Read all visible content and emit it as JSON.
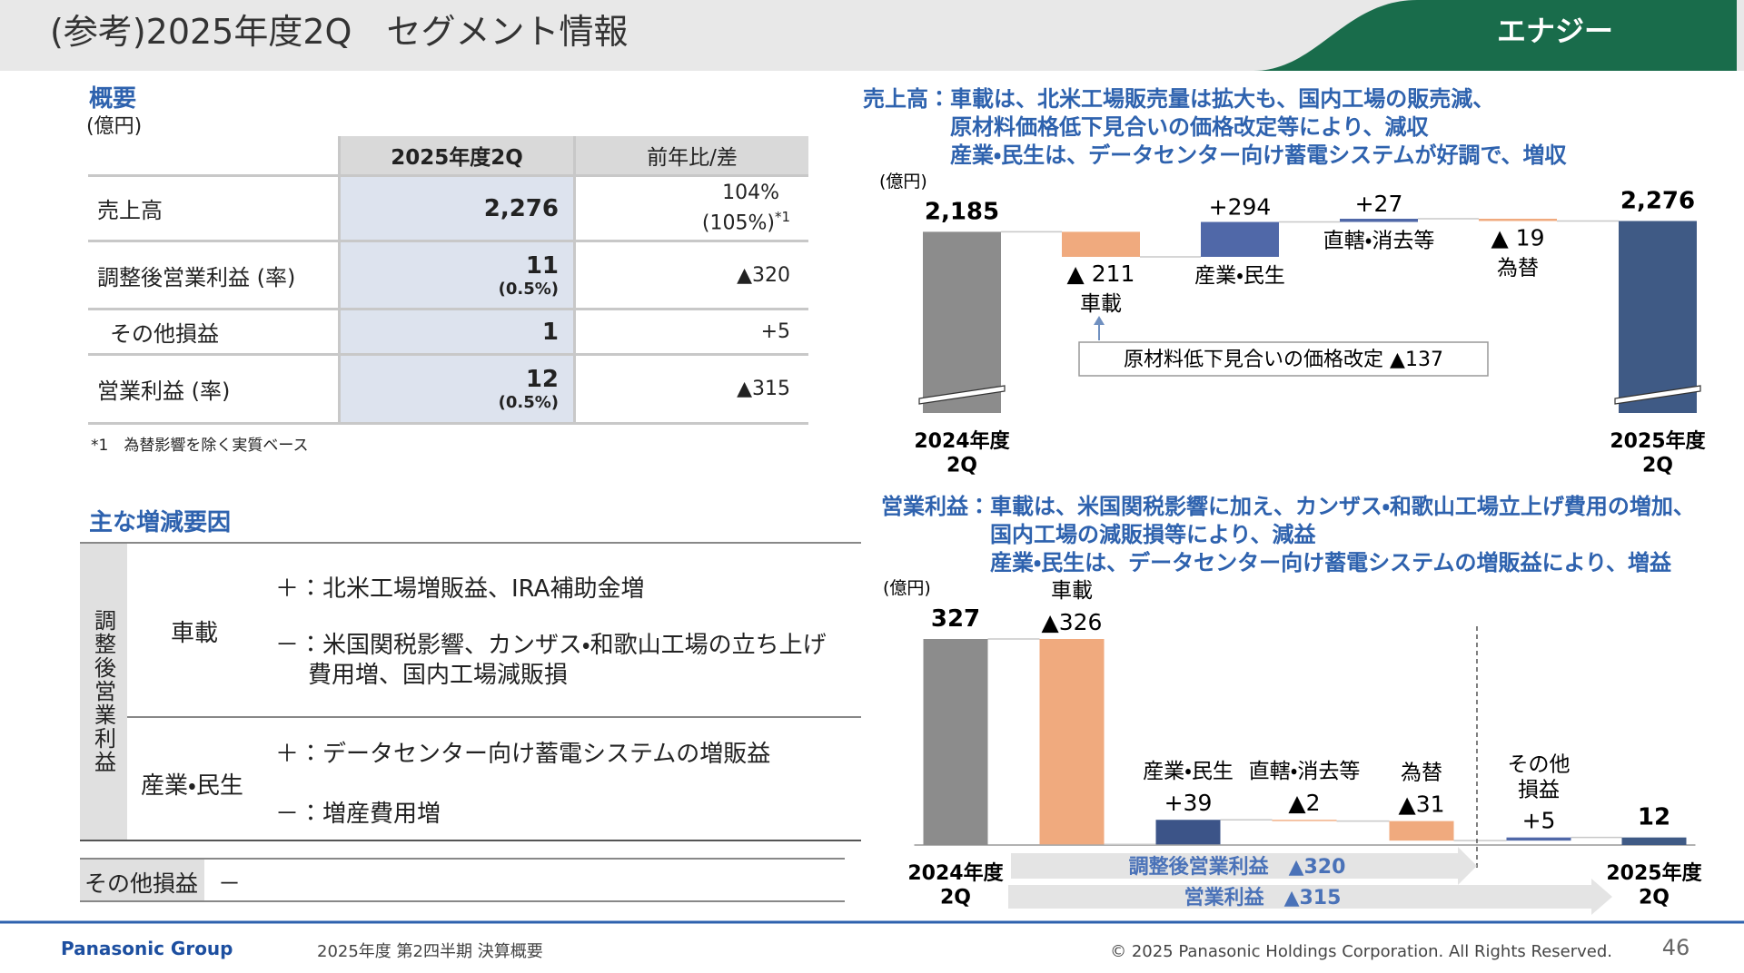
{
  "header": {
    "title": "(参考)2025年度2Q　セグメント情報",
    "segment": "エナジー"
  },
  "summary": {
    "title": "概要",
    "unit": "(億円)",
    "columns": [
      "2025年度2Q",
      "前年比/差"
    ],
    "rows": [
      {
        "label": "売上高",
        "value": "2,276",
        "change": "104%",
        "change_note": "(105%)",
        "change_mark": "*1"
      },
      {
        "label": "調整後営業利益 (率)",
        "value": "11",
        "value_note": "(0.5%)",
        "change": "▲320"
      },
      {
        "label": "その他損益",
        "value": "1",
        "change": "+5"
      },
      {
        "label": "営業利益 (率)",
        "value": "12",
        "value_note": "(0.5%)",
        "change": "▲315"
      }
    ],
    "footnote": "*1　為替影響を除く実質ベース"
  },
  "factors": {
    "title": "主な増減要因",
    "group": "調整後営業利益",
    "rows": [
      {
        "segment": "車載",
        "items": [
          "＋：北米工場増販益、IRA補助金増",
          "－：米国関税影響、カンザス・和歌山工場の立ち上げ\n費用増、国内工場減販損"
        ]
      },
      {
        "segment": "産業・民生",
        "items": [
          "＋：データセンター向け蓄電システムの増販益",
          "－：増産費用増"
        ]
      }
    ],
    "other": {
      "label": "その他損益",
      "value": "－"
    }
  },
  "chart_data": [
    {
      "type": "waterfall",
      "title": "売上高：",
      "notes": [
        "車載は、北米工場販売量は拡大も、国内工場の販売減、",
        "原材料価格低下見合いの価格改定等により、減収",
        "産業・民生は、データセンター向け蓄電システムが好調で、増収"
      ],
      "unit": "(億円)",
      "axis_break": true,
      "categories": [
        "2024年度\n2Q",
        "車載",
        "産業・民生",
        "直轄・消去等",
        "為替",
        "2025年度\n2Q"
      ],
      "measure": [
        "total",
        "relative",
        "relative",
        "relative",
        "relative",
        "total"
      ],
      "values": [
        2185,
        -211,
        294,
        27,
        -19,
        2276
      ],
      "value_labels": [
        "2,185",
        "▲ 211",
        "+294",
        "+27",
        "▲ 19",
        "2,276"
      ],
      "colors": [
        "#8c8c8c",
        "#f0aa7e",
        "#5068a8",
        "#5068a8",
        "#f0aa7e",
        "#3f5a85"
      ],
      "annotations": [
        "原材料低下見合いの価格改定 ▲137"
      ]
    },
    {
      "type": "waterfall",
      "title": "営業利益：",
      "notes": [
        "車載は、米国関税影響に加え、カンザス・和歌山工場立上げ費用の増加、",
        "国内工場の減販損等により、減益",
        "産業・民生は、データセンター向け蓄電システムの増販益により、増益"
      ],
      "unit": "(億円)",
      "axis_break": false,
      "categories": [
        "2024年度\n2Q",
        "車載",
        "産業・民生",
        "直轄・消去等",
        "為替",
        "その他\n損益",
        "2025年度\n2Q"
      ],
      "measure": [
        "total",
        "relative",
        "relative",
        "relative",
        "relative",
        "relative",
        "total"
      ],
      "values": [
        327,
        -326,
        39,
        -2,
        -31,
        5,
        12
      ],
      "value_labels": [
        "327",
        "▲326",
        "+39",
        "▲2",
        "▲31",
        "+5",
        "12"
      ],
      "colors": [
        "#8c8c8c",
        "#f0aa7e",
        "#3c5488",
        "#f0aa7e",
        "#f0aa7e",
        "#5068a8",
        "#3f5a85"
      ],
      "annotations": [
        "調整後営業利益　▲320",
        "営業利益　▲315"
      ]
    }
  ],
  "footer": {
    "brand": "Panasonic Group",
    "doc": "2025年度 第2四半期 決算概要",
    "copyright": "© 2025 Panasonic Holdings Corporation. All Rights Reserved.",
    "page": "46"
  }
}
